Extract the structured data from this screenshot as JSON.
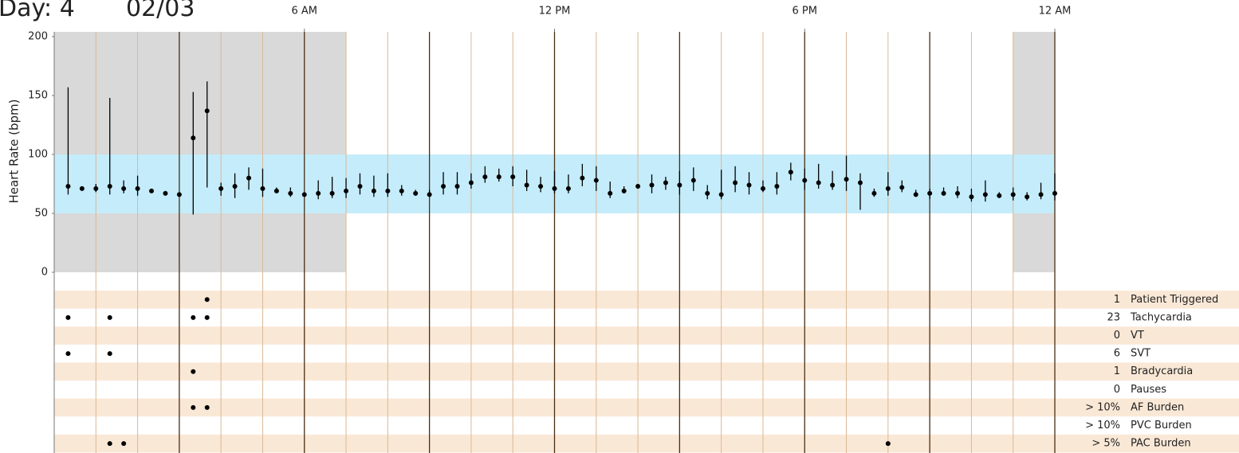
{
  "chart_data": {
    "type": "errorbar",
    "title": "Day: 4",
    "subtitle": "02/03",
    "y_label": "Heart Rate (bpm)",
    "xlim": [
      0,
      1440
    ],
    "xticks": [
      {
        "value": 360,
        "label": "6 AM"
      },
      {
        "value": 720,
        "label": "12 PM"
      },
      {
        "value": 1080,
        "label": "6 PM"
      },
      {
        "value": 1440,
        "label": "12 AM"
      }
    ],
    "major_lines": [
      180,
      360,
      540,
      720,
      900,
      1080,
      1260,
      1440
    ],
    "minor_lines": [
      60,
      120,
      240,
      300,
      420,
      480,
      600,
      660,
      780,
      840,
      960,
      1020,
      1140,
      1200,
      1320,
      1380
    ],
    "ylim": [
      0,
      200
    ],
    "yticks": [
      0,
      50,
      100,
      150,
      200
    ],
    "night_spans": [
      [
        0,
        420
      ],
      [
        1380,
        1440
      ]
    ],
    "normal_range": [
      50,
      100
    ],
    "series": [
      {
        "color": "#000000",
        "x": [
          20,
          40,
          60,
          80,
          100,
          120,
          140,
          160,
          180,
          200,
          220,
          240,
          260,
          280,
          300,
          320,
          340,
          360,
          380,
          400,
          420,
          440,
          460,
          480,
          500,
          520,
          540,
          560,
          580,
          600,
          620,
          640,
          660,
          680,
          700,
          720,
          740,
          760,
          780,
          800,
          820,
          840,
          860,
          880,
          900,
          920,
          940,
          960,
          980,
          1000,
          1020,
          1040,
          1060,
          1080,
          1100,
          1120,
          1140,
          1160,
          1180,
          1200,
          1220,
          1240,
          1260,
          1280,
          1300,
          1320,
          1340,
          1360,
          1380,
          1400,
          1420,
          1440
        ],
        "values": [
          73,
          71,
          71,
          73,
          71,
          71,
          69,
          67,
          66,
          114,
          137,
          71,
          73,
          80,
          71,
          69,
          67,
          66,
          67,
          67,
          69,
          73,
          69,
          69,
          69,
          67,
          66,
          73,
          73,
          76,
          81,
          81,
          81,
          74,
          73,
          71,
          71,
          80,
          78,
          67,
          69,
          73,
          74,
          76,
          74,
          78,
          67,
          66,
          76,
          74,
          71,
          73,
          85,
          78,
          76,
          74,
          79,
          76,
          67,
          71,
          72,
          66,
          67,
          67,
          67,
          64,
          66,
          65,
          66,
          64,
          66,
          67
        ],
        "low": [
          66,
          70,
          68,
          66,
          67,
          65,
          68,
          66,
          64,
          49,
          72,
          65,
          63,
          70,
          64,
          67,
          64,
          64,
          62,
          63,
          63,
          66,
          64,
          64,
          65,
          65,
          64,
          66,
          66,
          71,
          76,
          77,
          73,
          69,
          68,
          67,
          67,
          73,
          69,
          63,
          67,
          71,
          67,
          70,
          66,
          69,
          62,
          62,
          68,
          66,
          68,
          66,
          78,
          70,
          71,
          70,
          69,
          53,
          64,
          65,
          68,
          64,
          62,
          65,
          63,
          60,
          60,
          63,
          61,
          61,
          62,
          61
        ],
        "high": [
          157,
          73,
          75,
          148,
          78,
          82,
          71,
          69,
          68,
          153,
          162,
          76,
          84,
          89,
          88,
          72,
          72,
          68,
          78,
          81,
          80,
          84,
          82,
          84,
          74,
          70,
          70,
          85,
          85,
          84,
          90,
          88,
          90,
          87,
          81,
          86,
          83,
          92,
          90,
          77,
          73,
          75,
          83,
          81,
          86,
          89,
          74,
          87,
          90,
          85,
          78,
          85,
          93,
          88,
          92,
          86,
          99,
          84,
          71,
          85,
          78,
          70,
          71,
          72,
          73,
          71,
          78,
          68,
          72,
          68,
          76,
          84
        ]
      }
    ],
    "events": [
      {
        "count": 1,
        "name": "Patient Triggered",
        "times": [
          220
        ]
      },
      {
        "count": 23,
        "name": "Tachycardia",
        "times": [
          20,
          80,
          200,
          220
        ]
      },
      {
        "count": 0,
        "name": "VT",
        "times": []
      },
      {
        "count": 6,
        "name": "SVT",
        "times": [
          20,
          80
        ]
      },
      {
        "count": 1,
        "name": "Bradycardia",
        "times": [
          200
        ]
      },
      {
        "count": 0,
        "name": "Pauses",
        "times": []
      },
      {
        "count": "> 10%",
        "name": "AF Burden",
        "times": [
          200,
          220
        ]
      },
      {
        "count": "> 10%",
        "name": "PVC Burden",
        "times": []
      },
      {
        "count": "> 5%",
        "name": "PAC Burden",
        "times": [
          80,
          100,
          1200
        ]
      }
    ]
  }
}
